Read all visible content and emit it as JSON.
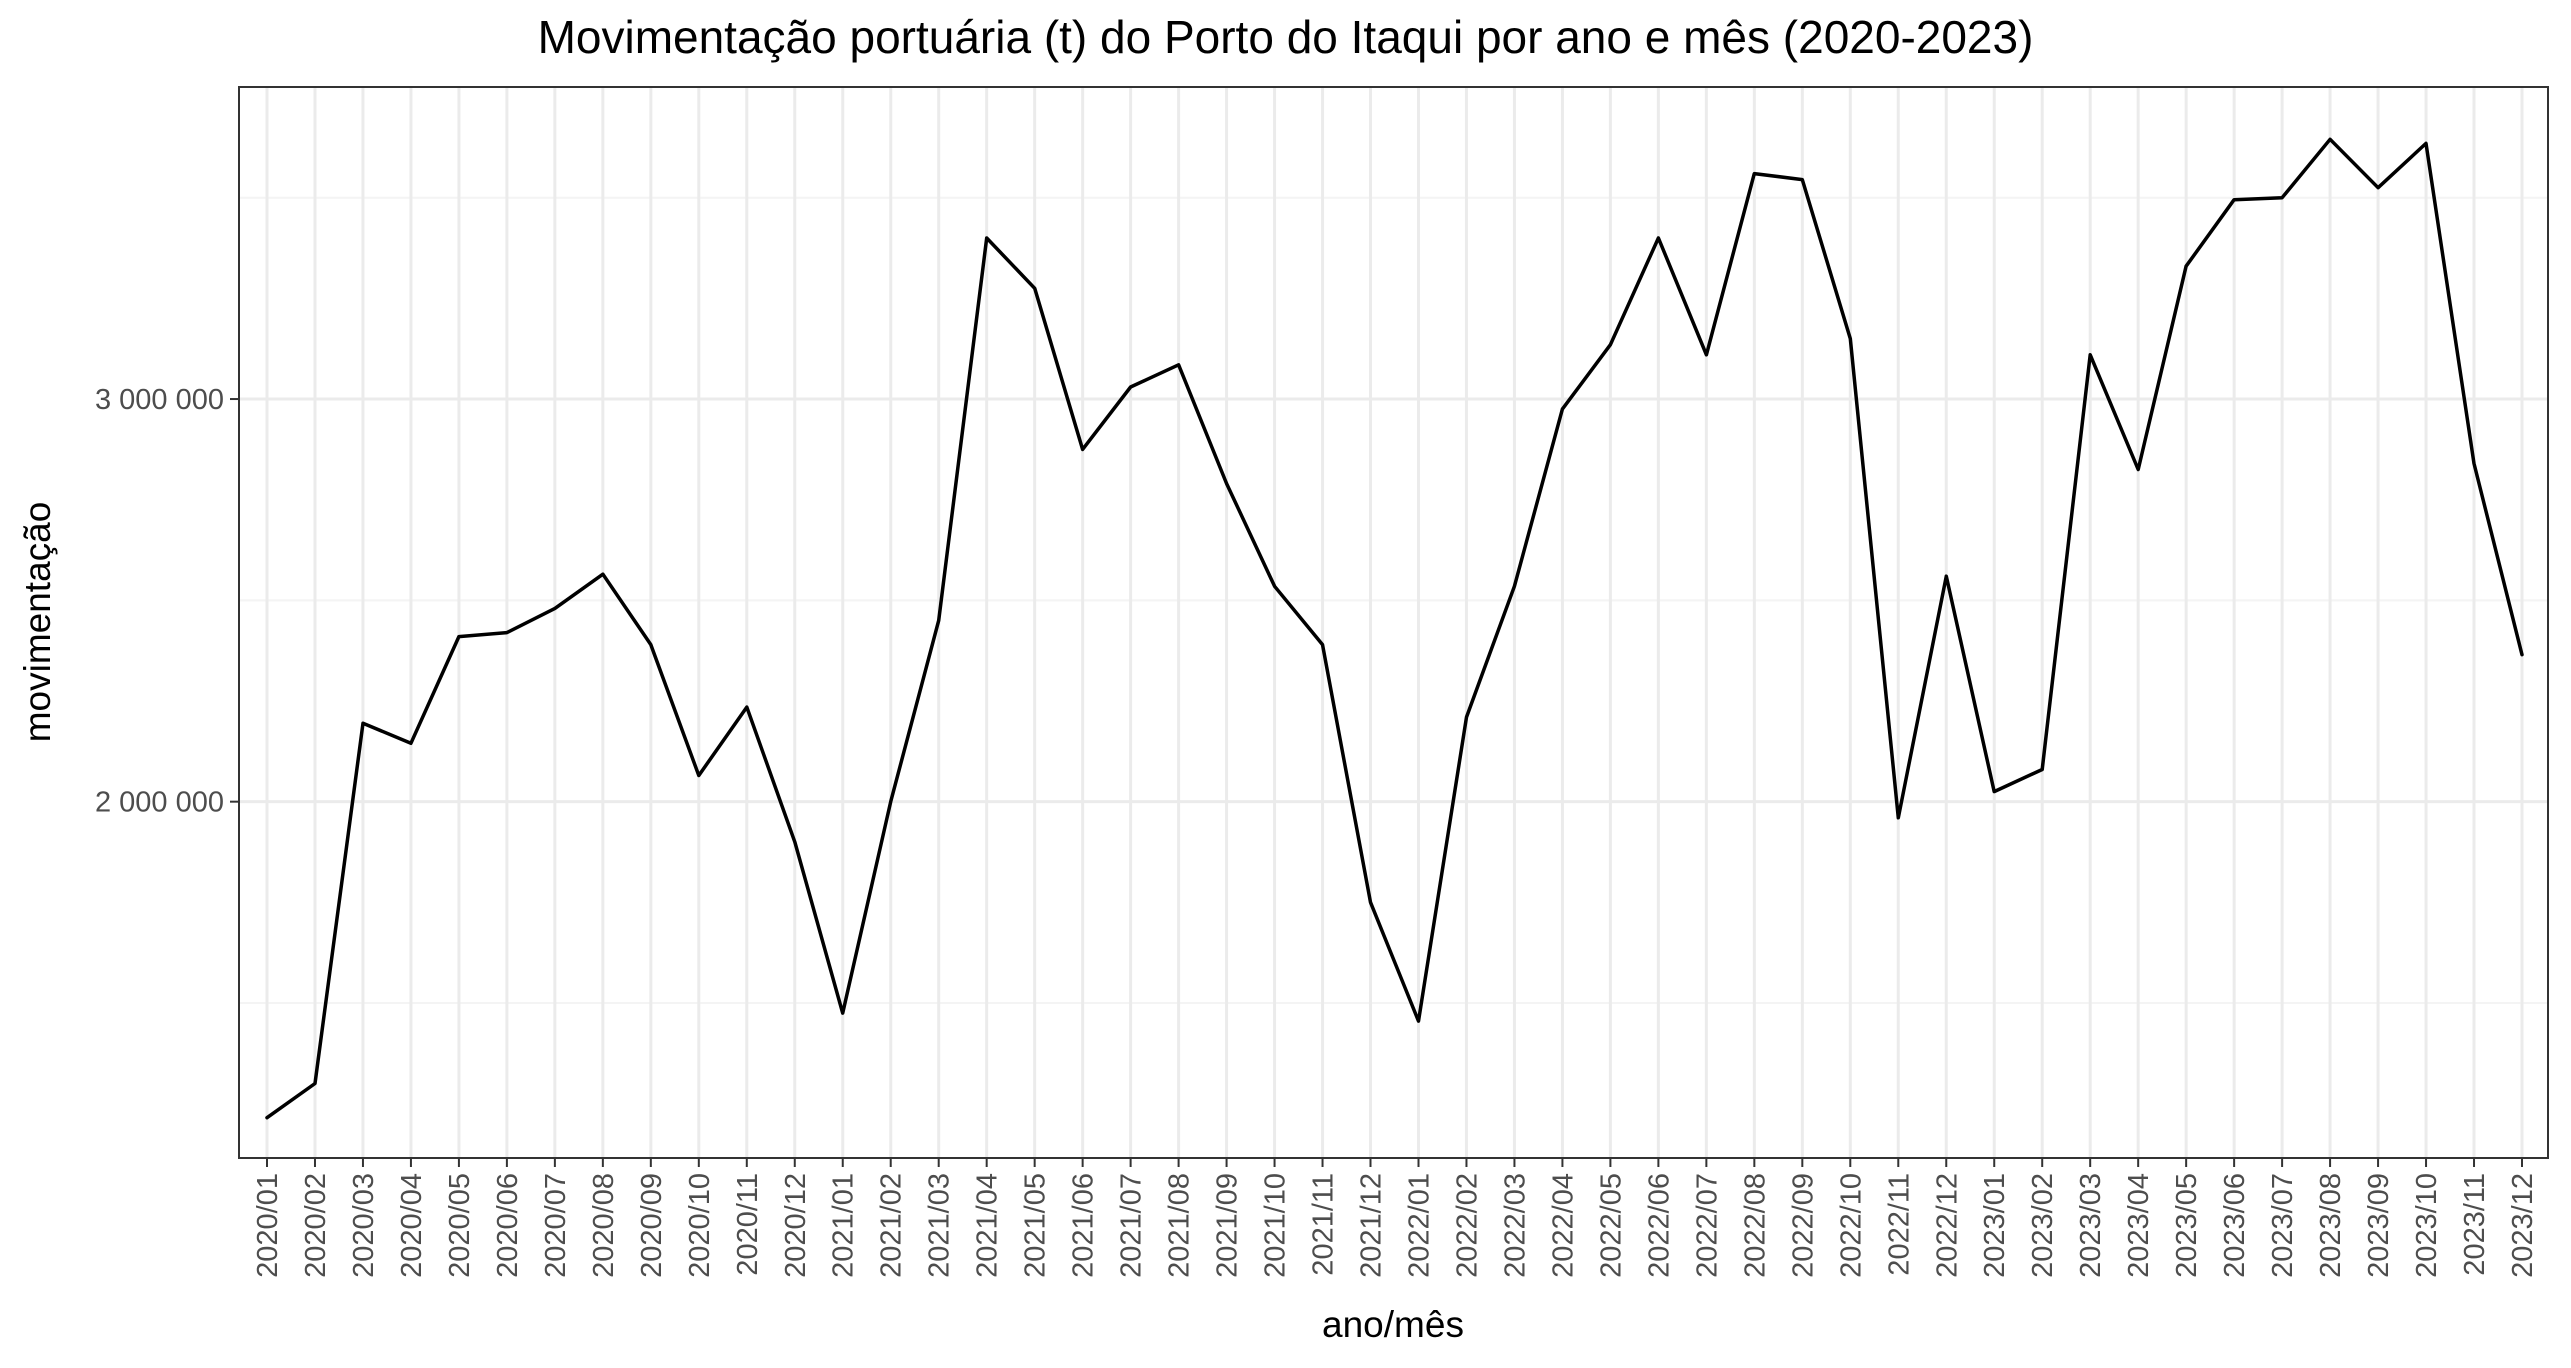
{
  "chart_data": {
    "type": "line",
    "title": "Movimentação portuária (t) do Porto do Itaqui por ano e mês (2020-2023)",
    "xlabel": "ano/mês",
    "ylabel": "movimentação",
    "categories": [
      "2020/01",
      "2020/02",
      "2020/03",
      "2020/04",
      "2020/05",
      "2020/06",
      "2020/07",
      "2020/08",
      "2020/09",
      "2020/10",
      "2020/11",
      "2020/12",
      "2021/01",
      "2021/02",
      "2021/03",
      "2021/04",
      "2021/05",
      "2021/06",
      "2021/07",
      "2021/08",
      "2021/09",
      "2021/10",
      "2021/11",
      "2021/12",
      "2022/01",
      "2022/02",
      "2022/03",
      "2022/04",
      "2022/05",
      "2022/06",
      "2022/07",
      "2022/08",
      "2022/09",
      "2022/10",
      "2022/11",
      "2022/12",
      "2023/01",
      "2023/02",
      "2023/03",
      "2023/04",
      "2023/05",
      "2023/06",
      "2023/07",
      "2023/08",
      "2023/09",
      "2023/10",
      "2023/11",
      "2023/12"
    ],
    "series": [
      {
        "values": [
          1215000,
          1300000,
          2195000,
          2145000,
          2410000,
          2420000,
          2480000,
          2565000,
          2390000,
          2065000,
          2235000,
          1900000,
          1475000,
          2000000,
          2450000,
          3400000,
          3275000,
          2875000,
          3030000,
          3085000,
          2790000,
          2535000,
          2390000,
          1750000,
          1455000,
          2210000,
          2535000,
          2975000,
          3135000,
          3400000,
          3110000,
          3560000,
          3545000,
          3150000,
          1960000,
          2560000,
          2025000,
          2080000,
          3110000,
          2825000,
          3330000,
          3495000,
          3500000,
          3645000,
          3525000,
          3635000,
          2840000,
          2365000
        ]
      }
    ],
    "yticks": [
      {
        "value": 2000000,
        "label": "2 000 000"
      },
      {
        "value": 3000000,
        "label": "3 000 000"
      }
    ],
    "ylim": [
      1115000,
      3775000
    ],
    "grid": true,
    "legend": "none",
    "colors": {
      "line": "#000000",
      "grid_major": "#ebebeb",
      "grid_minor": "#f4f4f4",
      "panel_border": "#333333"
    }
  }
}
